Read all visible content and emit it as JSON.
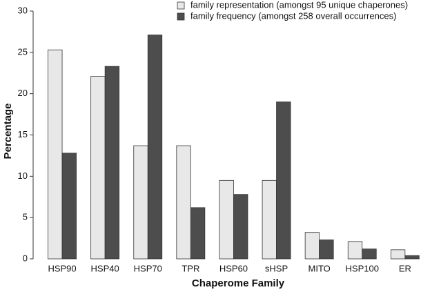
{
  "chart_data": {
    "type": "bar",
    "x_label": "Chaperome Family",
    "y_label": "Percentage",
    "categories": [
      "HSP90",
      "HSP40",
      "HSP70",
      "TPR",
      "HSP60",
      "sHSP",
      "MITO",
      "HSP100",
      "ER"
    ],
    "series": [
      {
        "name": "family representation (amongst 95 unique chaperones)",
        "color": "#e8e8e8",
        "values": [
          25.3,
          22.1,
          13.7,
          13.7,
          9.5,
          9.5,
          3.2,
          2.1,
          1.1
        ]
      },
      {
        "name": "family frequency (amongst 258 overall occurrences)",
        "color": "#4d4d4d",
        "values": [
          12.8,
          23.3,
          27.1,
          6.2,
          7.8,
          19.0,
          2.3,
          1.2,
          0.4
        ]
      }
    ],
    "ylim": [
      0,
      30
    ],
    "yticks": [
      0,
      5,
      10,
      15,
      20,
      25,
      30
    ],
    "legend": "top-right"
  }
}
